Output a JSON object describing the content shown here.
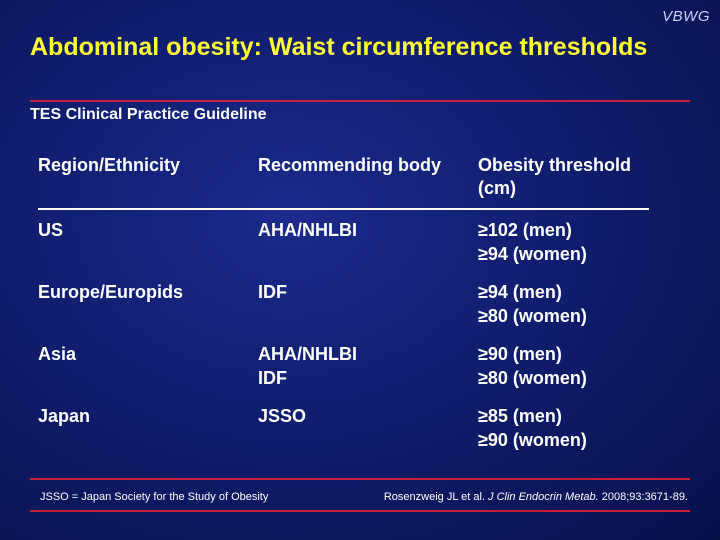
{
  "brand": "VBWG",
  "title": "Abdominal obesity: Waist circumference thresholds",
  "subtitle": "TES Clinical Practice Guideline",
  "table": {
    "headers": [
      "Region/Ethnicity",
      "Recommending body",
      "Obesity threshold (cm)"
    ],
    "rows": [
      {
        "region": "US",
        "bodies": [
          "AHA/NHLBI"
        ],
        "thresholds": [
          "≥102 (men)",
          "≥94 (women)"
        ]
      },
      {
        "region": "Europe/Europids",
        "bodies": [
          "IDF"
        ],
        "thresholds": [
          "≥94 (men)",
          "≥80 (women)"
        ]
      },
      {
        "region": "Asia",
        "bodies": [
          "AHA/NHLBI",
          "IDF"
        ],
        "thresholds": [
          "≥90 (men)",
          "≥80 (women)"
        ]
      },
      {
        "region": "Japan",
        "bodies": [
          "JSSO"
        ],
        "thresholds": [
          "≥85 (men)",
          "≥90 (women)"
        ]
      }
    ]
  },
  "footer": {
    "abbreviation": "JSSO = Japan Society for the Study of Obesity",
    "citation_authors": "Rosenzweig JL et al.",
    "citation_journal": "J Clin Endocrin Metab.",
    "citation_details": "2008;93:3671-89."
  }
}
